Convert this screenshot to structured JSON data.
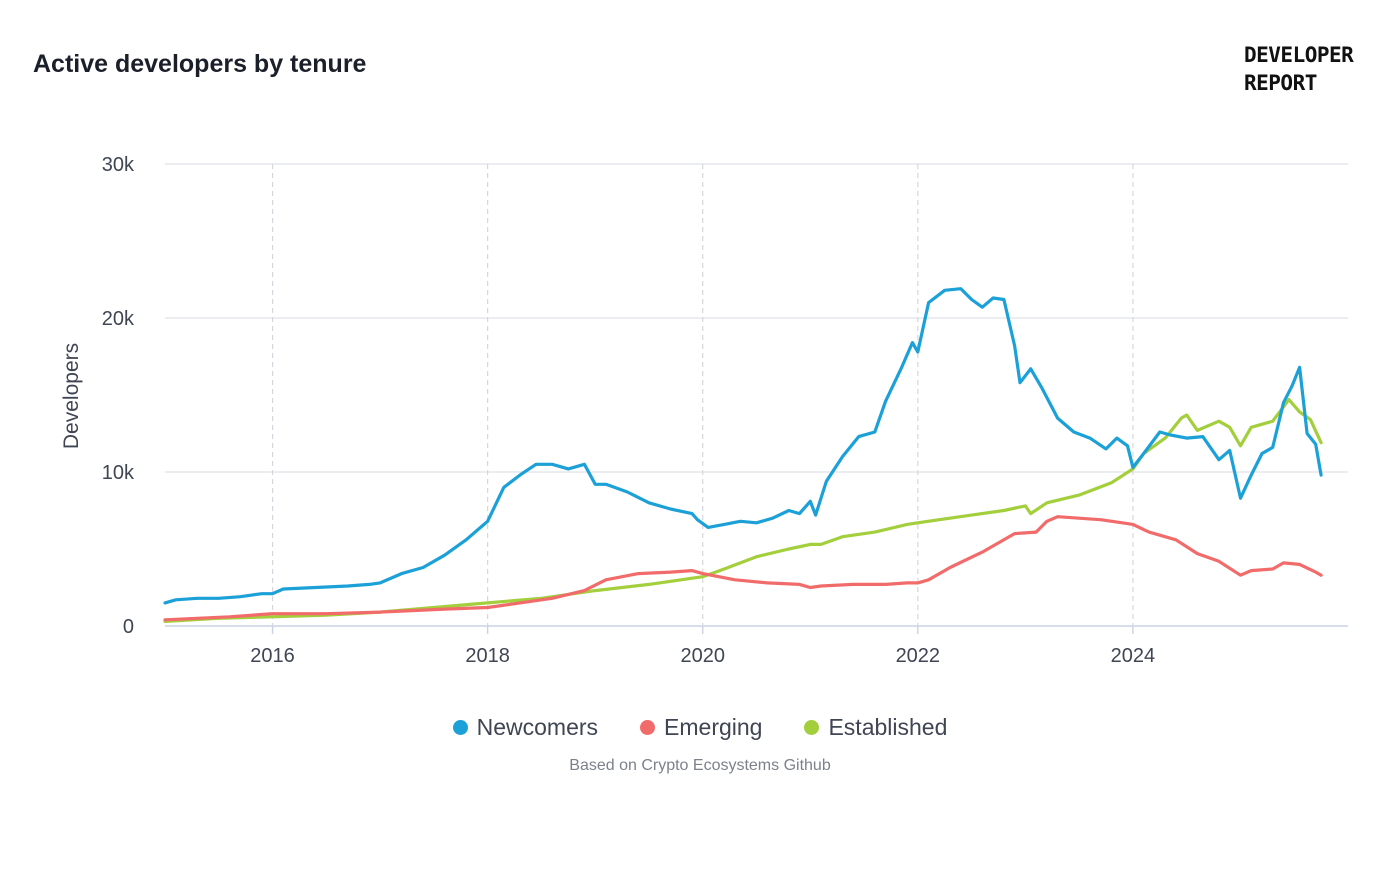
{
  "header": {
    "title": "Active developers by tenure",
    "brand_line1": "DEVELOPER",
    "brand_line2": "REPORT"
  },
  "footer": {
    "source": "Based on Crypto Ecosystems Github"
  },
  "chart_data": {
    "type": "line",
    "title": "Active developers by tenure",
    "xlabel": "",
    "ylabel": "Developers",
    "xlim": [
      2015.0,
      2026.0
    ],
    "ylim": [
      0,
      30000
    ],
    "x_ticks": [
      2016,
      2018,
      2020,
      2022,
      2024
    ],
    "x_tick_labels": [
      "2016",
      "2018",
      "2020",
      "2022",
      "2024"
    ],
    "y_ticks": [
      0,
      10000,
      20000,
      30000
    ],
    "y_tick_labels": [
      "0",
      "10k",
      "20k",
      "30k"
    ],
    "grid": {
      "horizontal": true,
      "vertical_dashed": true
    },
    "legend_position": "bottom-center",
    "series": [
      {
        "name": "Newcomers",
        "color": "#1ba1d8",
        "x": [
          2015.0,
          2015.1,
          2015.3,
          2015.5,
          2015.7,
          2015.9,
          2016.0,
          2016.1,
          2016.4,
          2016.7,
          2016.9,
          2017.0,
          2017.2,
          2017.4,
          2017.6,
          2017.8,
          2017.95,
          2018.0,
          2018.15,
          2018.3,
          2018.45,
          2018.6,
          2018.75,
          2018.9,
          2019.0,
          2019.1,
          2019.3,
          2019.5,
          2019.7,
          2019.9,
          2019.95,
          2020.05,
          2020.2,
          2020.35,
          2020.5,
          2020.65,
          2020.8,
          2020.9,
          2021.0,
          2021.05,
          2021.15,
          2021.3,
          2021.45,
          2021.6,
          2021.7,
          2021.85,
          2021.95,
          2022.0,
          2022.1,
          2022.25,
          2022.4,
          2022.5,
          2022.6,
          2022.7,
          2022.8,
          2022.9,
          2022.95,
          2023.05,
          2023.15,
          2023.3,
          2023.45,
          2023.6,
          2023.75,
          2023.85,
          2023.95,
          2024.0,
          2024.1,
          2024.25,
          2024.35,
          2024.5,
          2024.65,
          2024.8,
          2024.9,
          2025.0,
          2025.1,
          2025.2,
          2025.3,
          2025.4,
          2025.48,
          2025.55,
          2025.62,
          2025.7,
          2025.75
        ],
        "values": [
          1500,
          1700,
          1800,
          1800,
          1900,
          2100,
          2100,
          2400,
          2500,
          2600,
          2700,
          2800,
          3400,
          3800,
          4600,
          5600,
          6500,
          6800,
          9000,
          9800,
          10500,
          10500,
          10200,
          10500,
          9200,
          9200,
          8700,
          8000,
          7600,
          7300,
          6900,
          6400,
          6600,
          6800,
          6700,
          7000,
          7500,
          7300,
          8100,
          7200,
          9400,
          11000,
          12300,
          12600,
          14600,
          16800,
          18400,
          17800,
          21000,
          21800,
          21900,
          21200,
          20700,
          21300,
          21200,
          18200,
          15800,
          16700,
          15500,
          13500,
          12600,
          12200,
          11500,
          12200,
          11700,
          10300,
          11200,
          12600,
          12400,
          12200,
          12300,
          10800,
          11400,
          8300,
          9800,
          11200,
          11600,
          14500,
          15600,
          16800,
          12500,
          11800,
          9800
        ]
      },
      {
        "name": "Emerging",
        "color": "#f26b6b",
        "x": [
          2015.0,
          2015.3,
          2015.6,
          2016.0,
          2016.5,
          2017.0,
          2017.3,
          2017.6,
          2018.0,
          2018.3,
          2018.6,
          2018.9,
          2019.1,
          2019.4,
          2019.7,
          2019.9,
          2020.0,
          2020.3,
          2020.6,
          2020.9,
          2021.0,
          2021.1,
          2021.4,
          2021.7,
          2021.9,
          2022.0,
          2022.1,
          2022.3,
          2022.6,
          2022.9,
          2023.1,
          2023.2,
          2023.3,
          2023.5,
          2023.7,
          2023.9,
          2024.0,
          2024.15,
          2024.4,
          2024.6,
          2024.8,
          2025.0,
          2025.1,
          2025.3,
          2025.4,
          2025.55,
          2025.7,
          2025.75
        ],
        "values": [
          400,
          500,
          600,
          800,
          800,
          900,
          1000,
          1100,
          1200,
          1500,
          1800,
          2300,
          3000,
          3400,
          3500,
          3600,
          3400,
          3000,
          2800,
          2700,
          2500,
          2600,
          2700,
          2700,
          2800,
          2800,
          3000,
          3800,
          4800,
          6000,
          6100,
          6800,
          7100,
          7000,
          6900,
          6700,
          6600,
          6100,
          5600,
          4700,
          4200,
          3300,
          3600,
          3700,
          4100,
          4000,
          3500,
          3300
        ]
      },
      {
        "name": "Established",
        "color": "#a3cf3c",
        "x": [
          2015.0,
          2015.5,
          2016.0,
          2016.5,
          2017.0,
          2017.5,
          2018.0,
          2018.5,
          2019.0,
          2019.5,
          2020.0,
          2020.2,
          2020.5,
          2020.8,
          2021.0,
          2021.1,
          2021.3,
          2021.6,
          2021.9,
          2022.0,
          2022.2,
          2022.5,
          2022.8,
          2023.0,
          2023.05,
          2023.2,
          2023.5,
          2023.8,
          2024.0,
          2024.1,
          2024.3,
          2024.45,
          2024.5,
          2024.6,
          2024.8,
          2024.9,
          2025.0,
          2025.1,
          2025.3,
          2025.45,
          2025.55,
          2025.65,
          2025.75
        ],
        "values": [
          300,
          500,
          600,
          700,
          900,
          1200,
          1500,
          1800,
          2300,
          2700,
          3200,
          3700,
          4500,
          5000,
          5300,
          5300,
          5800,
          6100,
          6600,
          6700,
          6900,
          7200,
          7500,
          7800,
          7300,
          8000,
          8500,
          9300,
          10200,
          11200,
          12200,
          13500,
          13700,
          12700,
          13300,
          12900,
          11700,
          12900,
          13300,
          14700,
          13900,
          13400,
          11900
        ]
      }
    ]
  }
}
